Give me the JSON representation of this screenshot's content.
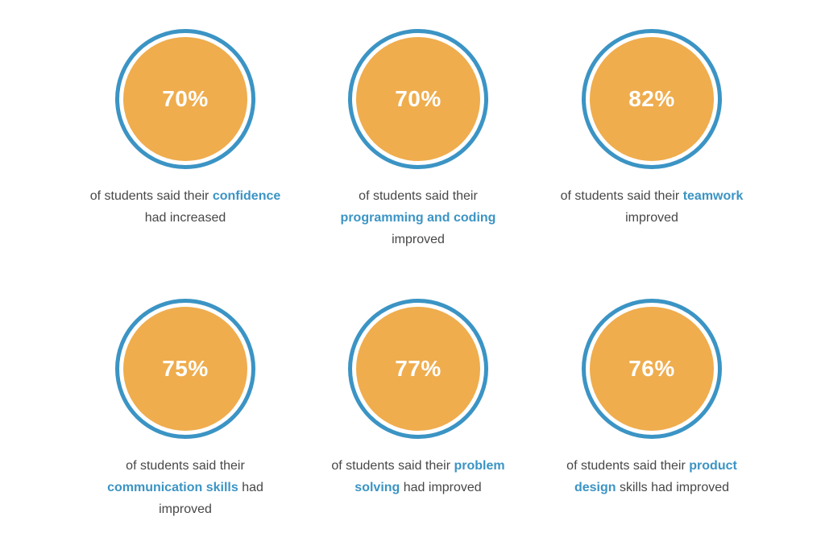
{
  "colors": {
    "ring": "#3b94c4",
    "disc": "#efad4e",
    "text": "#474747",
    "highlight": "#3b94c4"
  },
  "stats": [
    {
      "value": "70%",
      "lines": [
        [
          {
            "t": "of students said their "
          },
          {
            "t": "confidence",
            "hl": true
          }
        ],
        [
          {
            "t": "had increased"
          }
        ]
      ]
    },
    {
      "value": "70%",
      "lines": [
        [
          {
            "t": "of students said their"
          }
        ],
        [
          {
            "t": "programming and coding",
            "hl": true
          }
        ],
        [
          {
            "t": "improved"
          }
        ]
      ]
    },
    {
      "value": "82%",
      "lines": [
        [
          {
            "t": "of students said their "
          },
          {
            "t": "teamwork",
            "hl": true
          }
        ],
        [
          {
            "t": "improved"
          }
        ]
      ]
    },
    {
      "value": "75%",
      "lines": [
        [
          {
            "t": "of students said their"
          }
        ],
        [
          {
            "t": "communication skills",
            "hl": true
          },
          {
            "t": " had"
          }
        ],
        [
          {
            "t": "improved"
          }
        ]
      ]
    },
    {
      "value": "77%",
      "lines": [
        [
          {
            "t": "of students said their "
          },
          {
            "t": "problem",
            "hl": true
          }
        ],
        [
          {
            "t": "solving",
            "hl": true
          },
          {
            "t": " had improved"
          }
        ]
      ]
    },
    {
      "value": "76%",
      "lines": [
        [
          {
            "t": "of students said their "
          },
          {
            "t": "product",
            "hl": true
          }
        ],
        [
          {
            "t": "design",
            "hl": true
          },
          {
            "t": " skills had improved"
          }
        ]
      ]
    }
  ]
}
